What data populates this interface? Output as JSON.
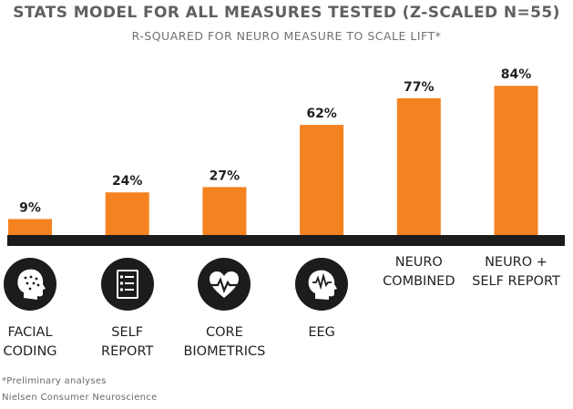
{
  "chart_data": {
    "type": "bar",
    "title": "STATS MODEL FOR ALL MEASURES TESTED (Z-SCALED N=55)",
    "subtitle": "R-SQUARED FOR NEURO MEASURE TO SCALE LIFT*",
    "categories": [
      "FACIAL\nCODING",
      "SELF\nREPORT",
      "CORE\nBIOMETRICS",
      "EEG",
      "NEURO\nCOMBINED",
      "NEURO +\nSELF REPORT"
    ],
    "values": [
      9,
      24,
      27,
      62,
      77,
      84
    ],
    "value_labels": [
      "9%",
      "24%",
      "27%",
      "62%",
      "77%",
      "84%"
    ],
    "icons": [
      "face-dots-icon",
      "checklist-icon",
      "heartbeat-icon",
      "brain-wave-icon",
      null,
      null
    ],
    "ylim": [
      0,
      100
    ],
    "grid": false,
    "legend": "none",
    "colors": {
      "bar": "#f58220",
      "baseline": "#1c1c1c",
      "icon_bg": "#1c1c1c"
    }
  },
  "footnotes": {
    "line1": "*Preliminary analyses",
    "line2": "Nielsen Consumer Neuroscience"
  }
}
